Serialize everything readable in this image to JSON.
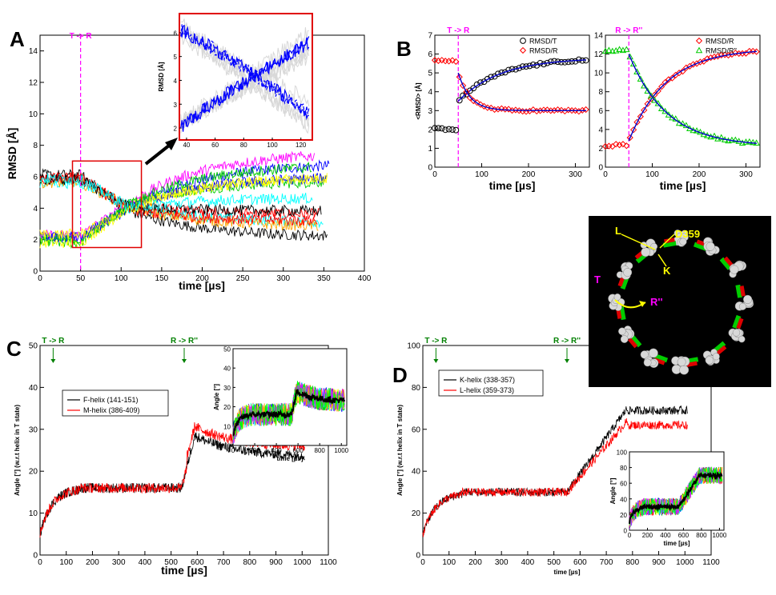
{
  "panels": {
    "A": {
      "label": "A"
    },
    "B": {
      "label": "B"
    },
    "C": {
      "label": "C"
    },
    "D": {
      "label": "D"
    }
  },
  "colors": {
    "magenta": "#ff00ff",
    "green_marker": "#008000",
    "blue_fit": "#0000cc",
    "red_box": "#e00000",
    "series": [
      "#0000ff",
      "#ff0000",
      "#00cc00",
      "#000000",
      "#ffff00",
      "#00ffff",
      "#ff00ff",
      "#ffa500"
    ]
  },
  "chart_data": [
    {
      "id": "A",
      "type": "line",
      "xlabel": "time [µs]",
      "ylabel": "RMSD [Å]",
      "xlim": [
        0,
        400
      ],
      "ylim": [
        0,
        15
      ],
      "xticks": [
        "0",
        "50",
        "100",
        "150",
        "200",
        "250",
        "300",
        "350",
        "400"
      ],
      "yticks": [
        "0",
        "2",
        "4",
        "6",
        "8",
        "10",
        "12",
        "14"
      ],
      "event": {
        "label": "T -> R",
        "x": 50
      },
      "zoom_box": {
        "x": [
          40,
          125
        ],
        "y": [
          1.5,
          7
        ]
      },
      "series_groups": [
        {
          "start": 6.0,
          "end": 6.5,
          "count": 4
        },
        {
          "start": 2.0,
          "end": 3.5,
          "count": 4
        }
      ]
    },
    {
      "id": "A-inset",
      "type": "line",
      "ylabel": "RMSD [Å]",
      "xlim": [
        35,
        128
      ],
      "ylim": [
        1.5,
        6.8
      ],
      "xticks": [
        "40",
        "60",
        "80",
        "100",
        "120"
      ],
      "yticks": [
        "2",
        "3",
        "4",
        "5",
        "6"
      ],
      "highlight": {
        "rising": [
          2.0,
          5.6
        ],
        "falling": [
          6.1,
          2.6
        ]
      }
    },
    {
      "id": "B-left",
      "type": "scatter",
      "xlabel": "time [µs]",
      "ylabel": "<RMSD> [Å]",
      "xlim": [
        0,
        330
      ],
      "ylim": [
        0,
        7
      ],
      "xticks": [
        "0",
        "100",
        "200",
        "300"
      ],
      "yticks": [
        "0",
        "1",
        "2",
        "3",
        "4",
        "5",
        "6",
        "7"
      ],
      "event": {
        "label": "T -> R",
        "x": 50
      },
      "series": [
        {
          "name": "RMSD/T",
          "color": "#000000",
          "marker": "circle",
          "before": 2.0,
          "jump": 3.5,
          "end": 5.8,
          "tau": 90
        },
        {
          "name": "RMSD/R",
          "color": "#ff0000",
          "marker": "diamond",
          "before": 5.6,
          "jump": 5.0,
          "end": 3.0,
          "tau": 25
        }
      ]
    },
    {
      "id": "B-right",
      "type": "scatter",
      "xlabel": "time [µs]",
      "xlim": [
        0,
        330
      ],
      "ylim": [
        0,
        14
      ],
      "xticks": [
        "0",
        "100",
        "200",
        "300"
      ],
      "yticks": [
        "0",
        "2",
        "4",
        "6",
        "8",
        "10",
        "12",
        "14"
      ],
      "event": {
        "label": "R -> R''",
        "x": 50
      },
      "series": [
        {
          "name": "RMSD/R",
          "color": "#ff0000",
          "marker": "diamond",
          "before": 2.3,
          "jump": 2.8,
          "end": 12.6,
          "tau": 80
        },
        {
          "name": "RMSD/R''",
          "color": "#00cc00",
          "marker": "triangle",
          "before": 12.4,
          "jump": 12.0,
          "end": 2.2,
          "tau": 80
        }
      ]
    },
    {
      "id": "C",
      "type": "line",
      "xlabel": "time [µs]",
      "ylabel": "Angle [°] (w.r.t helix in T state)",
      "xlim": [
        0,
        1100
      ],
      "ylim": [
        0,
        50
      ],
      "xticks": [
        "0",
        "100",
        "200",
        "300",
        "400",
        "500",
        "600",
        "700",
        "800",
        "900",
        "1000",
        "1100"
      ],
      "yticks": [
        "0",
        "10",
        "20",
        "30",
        "40",
        "50"
      ],
      "events": [
        {
          "label": "T -> R",
          "x": 50
        },
        {
          "label": "R -> R''",
          "x": 550
        }
      ],
      "series": [
        {
          "name": "F-helix (141-151)",
          "color": "#000000"
        },
        {
          "name": "M-helix (386-409)",
          "color": "#ff0000"
        }
      ]
    },
    {
      "id": "C-inset",
      "type": "line",
      "xlabel": "time [µs]",
      "ylabel": "Angle [°]",
      "xlim": [
        0,
        1050
      ],
      "ylim": [
        0,
        50
      ],
      "xticks": [
        "0",
        "200",
        "400",
        "600",
        "800",
        "1000"
      ],
      "yticks": [
        "0",
        "10",
        "20",
        "30",
        "40",
        "50"
      ]
    },
    {
      "id": "D",
      "type": "line",
      "xlabel": "time [µs]",
      "ylabel": "Angle [°] (w.r.t helix in T state)",
      "xlim": [
        0,
        1100
      ],
      "ylim": [
        0,
        100
      ],
      "xticks": [
        "0",
        "100",
        "200",
        "300",
        "400",
        "500",
        "600",
        "700",
        "800",
        "900",
        "1000",
        "1100"
      ],
      "yticks": [
        "0",
        "20",
        "40",
        "60",
        "80",
        "100"
      ],
      "events": [
        {
          "label": "T -> R",
          "x": 50
        },
        {
          "label": "R -> R''",
          "x": 550
        }
      ],
      "series": [
        {
          "name": "K-helix (338-357)",
          "color": "#000000"
        },
        {
          "name": "L-helix (359-373)",
          "color": "#ff0000"
        }
      ]
    },
    {
      "id": "D-inset",
      "type": "line",
      "xlabel": "time [µs]",
      "ylabel": "Angle [°]",
      "xlim": [
        0,
        1050
      ],
      "ylim": [
        0,
        100
      ],
      "xticks": [
        "0",
        "200",
        "400",
        "600",
        "800",
        "1000"
      ],
      "yticks": [
        "0",
        "20",
        "40",
        "60",
        "80",
        "100"
      ]
    }
  ],
  "molecule": {
    "labels": {
      "L": "L",
      "D359": "D359",
      "T": "T",
      "K": "K",
      "R2": "R''"
    }
  }
}
